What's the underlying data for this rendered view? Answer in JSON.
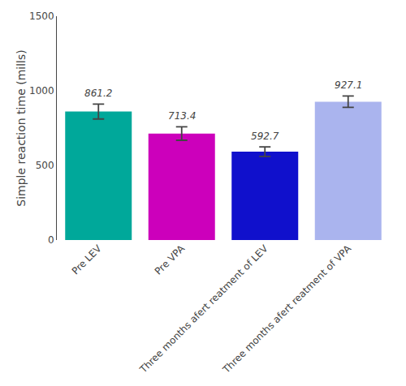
{
  "chart_data": {
    "type": "bar",
    "categories": [
      "Pre LEV",
      "Pre VPA",
      "Three months afert reatment of LEV",
      "Three months afert reatment of VPA"
    ],
    "values": [
      861.2,
      713.4,
      592.7,
      927.1
    ],
    "errors": [
      50,
      45,
      32,
      38
    ],
    "colors": [
      "#00a89a",
      "#cc00bb",
      "#1010cc",
      "#aab4ee"
    ],
    "ylabel": "Simple reaction time (mills)",
    "ylim": [
      0,
      1500
    ],
    "yticks": [
      0,
      500,
      1000,
      1500
    ],
    "data_labels": true,
    "grid": false
  }
}
